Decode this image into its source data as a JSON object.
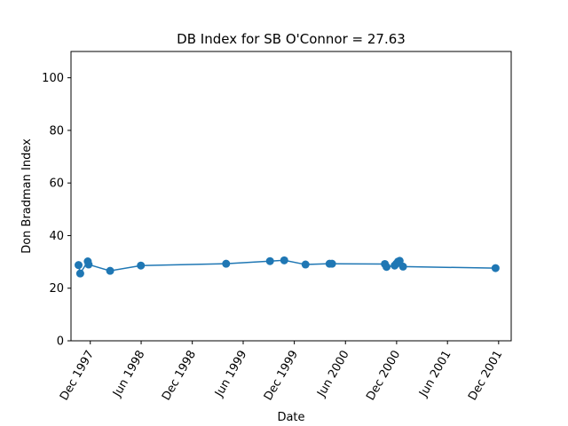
{
  "chart_data": {
    "type": "line",
    "title": "DB Index for SB O'Connor = 27.63",
    "xlabel": "Date",
    "ylabel": "Don Bradman Index",
    "ylim": [
      0,
      110
    ],
    "xlim": [
      "1997-09-23",
      "2002-01-15"
    ],
    "y_ticks": [
      0,
      20,
      40,
      60,
      80,
      100
    ],
    "x_ticks": [
      {
        "date": "1997-12-01",
        "label": "Dec 1997"
      },
      {
        "date": "1998-06-01",
        "label": "Jun 1998"
      },
      {
        "date": "1998-12-01",
        "label": "Dec 1998"
      },
      {
        "date": "1999-06-01",
        "label": "Jun 1999"
      },
      {
        "date": "1999-12-01",
        "label": "Dec 1999"
      },
      {
        "date": "2000-06-01",
        "label": "Jun 2000"
      },
      {
        "date": "2000-12-01",
        "label": "Dec 2000"
      },
      {
        "date": "2001-06-01",
        "label": "Jun 2001"
      },
      {
        "date": "2001-12-01",
        "label": "Dec 2001"
      }
    ],
    "grid": false,
    "series": [
      {
        "color": "#1f77b4",
        "marker": "circle",
        "points": [
          {
            "x": "1997-10-20",
            "y": 28.8
          },
          {
            "x": "1997-10-26",
            "y": 25.6
          },
          {
            "x": "1997-11-22",
            "y": 30.2
          },
          {
            "x": "1997-11-25",
            "y": 29.0
          },
          {
            "x": "1998-02-10",
            "y": 26.6
          },
          {
            "x": "1998-05-31",
            "y": 28.6
          },
          {
            "x": "1999-04-01",
            "y": 29.3
          },
          {
            "x": "1999-09-05",
            "y": 30.3
          },
          {
            "x": "1999-10-26",
            "y": 30.6
          },
          {
            "x": "2000-01-10",
            "y": 29.0
          },
          {
            "x": "2000-04-05",
            "y": 29.3
          },
          {
            "x": "2000-04-14",
            "y": 29.3
          },
          {
            "x": "2000-10-20",
            "y": 29.2
          },
          {
            "x": "2000-10-26",
            "y": 28.1
          },
          {
            "x": "2000-11-24",
            "y": 28.6
          },
          {
            "x": "2000-11-30",
            "y": 29.3
          },
          {
            "x": "2000-12-06",
            "y": 30.1
          },
          {
            "x": "2000-12-12",
            "y": 30.4
          },
          {
            "x": "2000-12-24",
            "y": 28.2
          },
          {
            "x": "2001-11-20",
            "y": 27.63
          }
        ]
      }
    ]
  }
}
